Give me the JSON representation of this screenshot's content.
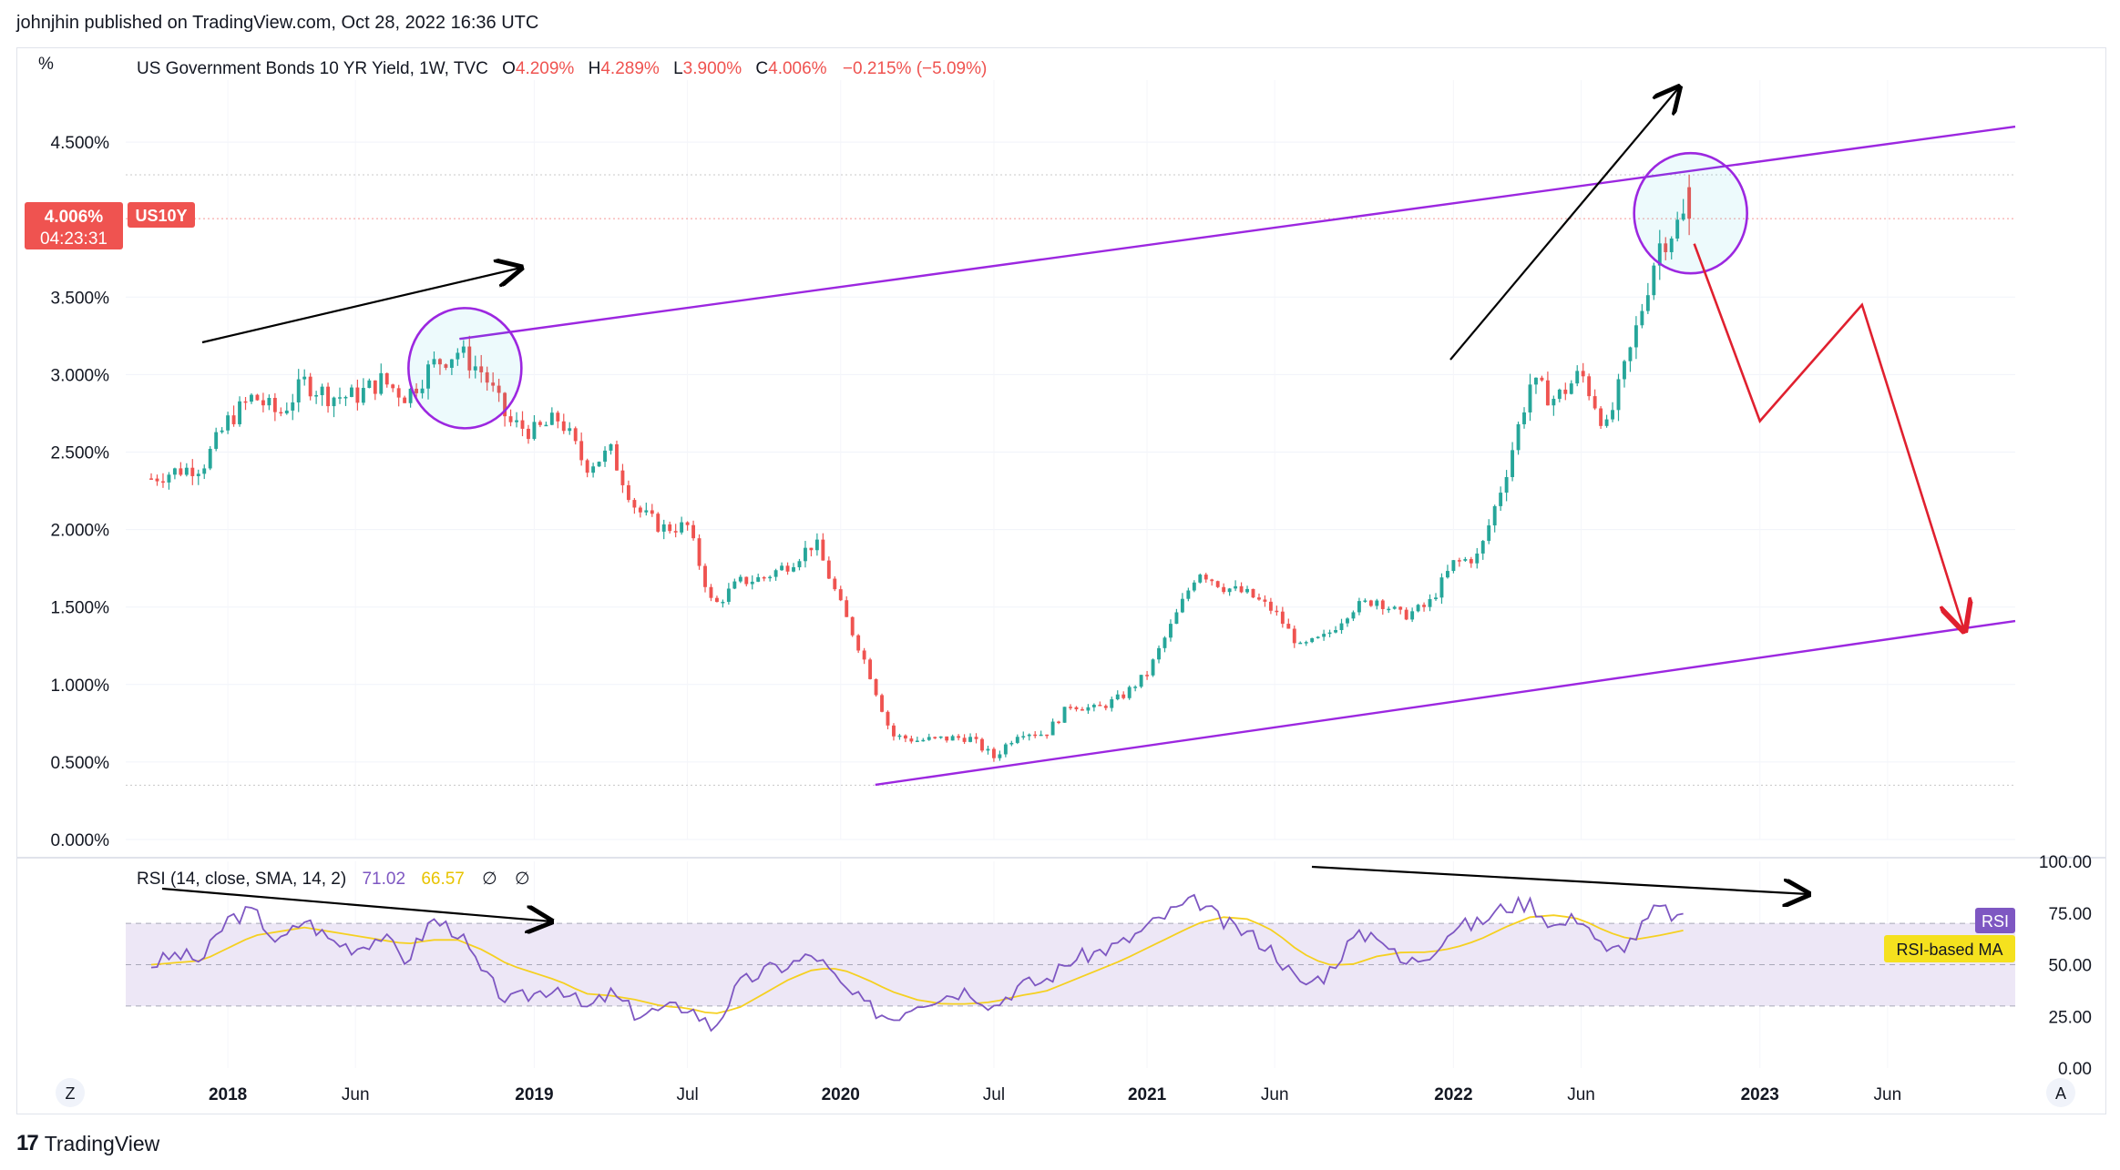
{
  "publisher_line": "johnjhin published on TradingView.com, Oct 28, 2022 16:36 UTC",
  "footer": {
    "brand": "TradingView"
  },
  "legend": {
    "symbol": "US Government Bonds 10 YR Yield, 1W, TVC",
    "o_label": "O",
    "o_value": "4.209%",
    "h_label": "H",
    "h_value": "4.289%",
    "l_label": "L",
    "l_value": "3.900%",
    "c_label": "C",
    "c_value": "4.006%",
    "change": "−0.215% (−5.09%)"
  },
  "price_badge": {
    "value": "4.006%",
    "timer": "04:23:31",
    "ticker": "US10Y"
  },
  "axis_unit": "%",
  "rsi_legend": {
    "label": "RSI (14, close, SMA, 14, 2)",
    "rsi_value": "71.02",
    "ma_value": "66.57",
    "extra1": "∅",
    "extra2": "∅"
  },
  "rsi_badges": {
    "rsi": "RSI",
    "ma": "RSI-based MA"
  },
  "bottom_buttons": {
    "left": "Z",
    "right": "A"
  },
  "colors": {
    "up": "#26a69a",
    "down": "#ef5350",
    "channel": "#9c27e0",
    "projection": "#e0202f",
    "rsi_line": "#7e57c2",
    "rsi_ma": "#f5d020",
    "rsi_band": "#ede7f6"
  },
  "chart_data": [
    {
      "type": "candlestick",
      "title": "US Government Bonds 10 YR Yield, 1W, TVC",
      "ylabel": "%",
      "ylim": [
        0,
        4.9
      ],
      "y_ticks": [
        "0.000%",
        "0.500%",
        "1.000%",
        "1.500%",
        "2.000%",
        "2.500%",
        "3.000%",
        "3.500%",
        "4.500%"
      ],
      "x_ticks": [
        "2018",
        "Jun",
        "2019",
        "Jul",
        "2020",
        "Jul",
        "2021",
        "Jun",
        "2022",
        "Jun",
        "2023",
        "Jun"
      ],
      "x_range": [
        "2017-09",
        "2023-11"
      ],
      "close_path": [
        [
          "2017-10",
          2.33
        ],
        [
          "2017-11",
          2.38
        ],
        [
          "2017-12",
          2.41
        ],
        [
          "2018-01",
          2.7
        ],
        [
          "2018-02",
          2.86
        ],
        [
          "2018-03",
          2.74
        ],
        [
          "2018-04",
          2.95
        ],
        [
          "2018-05",
          2.86
        ],
        [
          "2018-06",
          2.86
        ],
        [
          "2018-07",
          2.96
        ],
        [
          "2018-08",
          2.86
        ],
        [
          "2018-09",
          3.06
        ],
        [
          "2018-10",
          3.15
        ],
        [
          "2018-11",
          3.01
        ],
        [
          "2018-12",
          2.69
        ],
        [
          "2019-01",
          2.63
        ],
        [
          "2019-02",
          2.72
        ],
        [
          "2019-03",
          2.41
        ],
        [
          "2019-04",
          2.5
        ],
        [
          "2019-05",
          2.13
        ],
        [
          "2019-06",
          2.01
        ],
        [
          "2019-07",
          2.02
        ],
        [
          "2019-08",
          1.5
        ],
        [
          "2019-09",
          1.66
        ],
        [
          "2019-10",
          1.69
        ],
        [
          "2019-11",
          1.78
        ],
        [
          "2019-12",
          1.92
        ],
        [
          "2020-01",
          1.51
        ],
        [
          "2020-02",
          1.13
        ],
        [
          "2020-03",
          0.67
        ],
        [
          "2020-04",
          0.64
        ],
        [
          "2020-05",
          0.65
        ],
        [
          "2020-06",
          0.66
        ],
        [
          "2020-07",
          0.53
        ],
        [
          "2020-08",
          0.7
        ],
        [
          "2020-09",
          0.68
        ],
        [
          "2020-10",
          0.87
        ],
        [
          "2020-11",
          0.84
        ],
        [
          "2020-12",
          0.92
        ],
        [
          "2021-01",
          1.07
        ],
        [
          "2021-02",
          1.4
        ],
        [
          "2021-03",
          1.74
        ],
        [
          "2021-04",
          1.63
        ],
        [
          "2021-05",
          1.58
        ],
        [
          "2021-06",
          1.47
        ],
        [
          "2021-07",
          1.24
        ],
        [
          "2021-08",
          1.31
        ],
        [
          "2021-09",
          1.49
        ],
        [
          "2021-10",
          1.55
        ],
        [
          "2021-11",
          1.44
        ],
        [
          "2021-12",
          1.51
        ],
        [
          "2022-01",
          1.78
        ],
        [
          "2022-02",
          1.83
        ],
        [
          "2022-03",
          2.34
        ],
        [
          "2022-04",
          2.94
        ],
        [
          "2022-05",
          2.84
        ],
        [
          "2022-06",
          3.01
        ],
        [
          "2022-07",
          2.65
        ],
        [
          "2022-08",
          3.19
        ],
        [
          "2022-09",
          3.83
        ],
        [
          "2022-10",
          4.01
        ]
      ],
      "last": {
        "open": 4.209,
        "high": 4.289,
        "low": 3.9,
        "close": 4.006
      },
      "annotations": {
        "upper_channel": [
          [
            "2018-09",
            3.23
          ],
          [
            "2023-11",
            4.6
          ]
        ],
        "lower_channel": [
          [
            "2020-03",
            0.4
          ],
          [
            "2023-11",
            1.41
          ]
        ],
        "circles": [
          [
            "2018-10",
            3.1
          ],
          [
            "2022-10",
            4.1
          ]
        ],
        "projection": [
          [
            "2022-10",
            3.95
          ],
          [
            "2023-01",
            2.7
          ],
          [
            "2023-05",
            3.45
          ],
          [
            "2023-09",
            1.35
          ]
        ]
      }
    },
    {
      "type": "line",
      "title": "RSI (14, close, SMA, 14, 2)",
      "ylim": [
        0,
        100
      ],
      "y_ticks": [
        "0.00",
        "25.00",
        "50.00",
        "75.00",
        "100.00"
      ],
      "band": [
        30,
        70
      ],
      "series": [
        {
          "name": "RSI",
          "values": [
            [
              "2017-10",
              50
            ],
            [
              "2017-11",
              55
            ],
            [
              "2017-12",
              52
            ],
            [
              "2018-01",
              72
            ],
            [
              "2018-02",
              76
            ],
            [
              "2018-03",
              60
            ],
            [
              "2018-04",
              72
            ],
            [
              "2018-05",
              62
            ],
            [
              "2018-06",
              58
            ],
            [
              "2018-07",
              64
            ],
            [
              "2018-08",
              52
            ],
            [
              "2018-09",
              72
            ],
            [
              "2018-10",
              66
            ],
            [
              "2018-11",
              45
            ],
            [
              "2018-12",
              32
            ],
            [
              "2019-01",
              36
            ],
            [
              "2019-02",
              40
            ],
            [
              "2019-03",
              28
            ],
            [
              "2019-04",
              36
            ],
            [
              "2019-05",
              26
            ],
            [
              "2019-06",
              28
            ],
            [
              "2019-07",
              30
            ],
            [
              "2019-08",
              19
            ],
            [
              "2019-09",
              40
            ],
            [
              "2019-10",
              47
            ],
            [
              "2019-11",
              50
            ],
            [
              "2019-12",
              55
            ],
            [
              "2020-01",
              40
            ],
            [
              "2020-02",
              30
            ],
            [
              "2020-03",
              24
            ],
            [
              "2020-04",
              32
            ],
            [
              "2020-05",
              35
            ],
            [
              "2020-06",
              38
            ],
            [
              "2020-07",
              30
            ],
            [
              "2020-08",
              40
            ],
            [
              "2020-09",
              42
            ],
            [
              "2020-10",
              52
            ],
            [
              "2020-11",
              56
            ],
            [
              "2020-12",
              60
            ],
            [
              "2021-01",
              68
            ],
            [
              "2021-02",
              76
            ],
            [
              "2021-03",
              81
            ],
            [
              "2021-04",
              70
            ],
            [
              "2021-05",
              65
            ],
            [
              "2021-06",
              56
            ],
            [
              "2021-07",
              40
            ],
            [
              "2021-08",
              45
            ],
            [
              "2021-09",
              62
            ],
            [
              "2021-10",
              66
            ],
            [
              "2021-11",
              50
            ],
            [
              "2021-12",
              55
            ],
            [
              "2022-01",
              68
            ],
            [
              "2022-02",
              70
            ],
            [
              "2022-03",
              78
            ],
            [
              "2022-04",
              80
            ],
            [
              "2022-05",
              68
            ],
            [
              "2022-06",
              74
            ],
            [
              "2022-07",
              55
            ],
            [
              "2022-08",
              62
            ],
            [
              "2022-09",
              78
            ],
            [
              "2022-10",
              71
            ]
          ]
        },
        {
          "name": "RSI-based MA",
          "values": [
            [
              "2017-10",
              50
            ],
            [
              "2017-11",
              51
            ],
            [
              "2017-12",
              52
            ],
            [
              "2018-01",
              58
            ],
            [
              "2018-02",
              64
            ],
            [
              "2018-03",
              66
            ],
            [
              "2018-04",
              68
            ],
            [
              "2018-05",
              66
            ],
            [
              "2018-06",
              64
            ],
            [
              "2018-07",
              62
            ],
            [
              "2018-08",
              60
            ],
            [
              "2018-09",
              62
            ],
            [
              "2018-10",
              62
            ],
            [
              "2018-11",
              57
            ],
            [
              "2018-12",
              50
            ],
            [
              "2019-01",
              46
            ],
            [
              "2019-02",
              42
            ],
            [
              "2019-03",
              36
            ],
            [
              "2019-04",
              35
            ],
            [
              "2019-05",
              33
            ],
            [
              "2019-06",
              30
            ],
            [
              "2019-07",
              29
            ],
            [
              "2019-08",
              26
            ],
            [
              "2019-09",
              29
            ],
            [
              "2019-10",
              36
            ],
            [
              "2019-11",
              43
            ],
            [
              "2019-12",
              48
            ],
            [
              "2020-01",
              48
            ],
            [
              "2020-02",
              43
            ],
            [
              "2020-03",
              37
            ],
            [
              "2020-04",
              33
            ],
            [
              "2020-05",
              31
            ],
            [
              "2020-06",
              31
            ],
            [
              "2020-07",
              32
            ],
            [
              "2020-08",
              35
            ],
            [
              "2020-09",
              37
            ],
            [
              "2020-10",
              42
            ],
            [
              "2020-11",
              47
            ],
            [
              "2020-12",
              52
            ],
            [
              "2021-01",
              58
            ],
            [
              "2021-02",
              64
            ],
            [
              "2021-03",
              70
            ],
            [
              "2021-04",
              73
            ],
            [
              "2021-05",
              72
            ],
            [
              "2021-06",
              66
            ],
            [
              "2021-07",
              56
            ],
            [
              "2021-08",
              50
            ],
            [
              "2021-09",
              50
            ],
            [
              "2021-10",
              54
            ],
            [
              "2021-11",
              56
            ],
            [
              "2021-12",
              56
            ],
            [
              "2022-01",
              58
            ],
            [
              "2022-02",
              62
            ],
            [
              "2022-03",
              68
            ],
            [
              "2022-04",
              73
            ],
            [
              "2022-05",
              74
            ],
            [
              "2022-06",
              72
            ],
            [
              "2022-07",
              66
            ],
            [
              "2022-08",
              62
            ],
            [
              "2022-09",
              64
            ],
            [
              "2022-10",
              66.57
            ]
          ]
        }
      ]
    }
  ]
}
